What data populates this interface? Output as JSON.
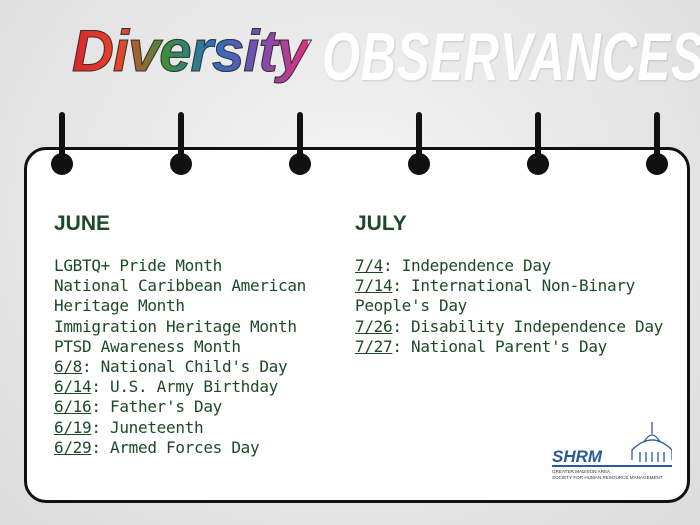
{
  "header": {
    "word1": "Diversity",
    "word2": "OBSERVANCES"
  },
  "columns": [
    {
      "heading": "JUNE",
      "items": [
        {
          "text": "LGBTQ+ Pride Month"
        },
        {
          "text": "National Caribbean American Heritage Month"
        },
        {
          "text": "Immigration Heritage Month"
        },
        {
          "text": "PTSD Awareness Month"
        },
        {
          "date": "6/8",
          "text": ": National Child's Day"
        },
        {
          "date": "6/14",
          "text": ": U.S. Army Birthday"
        },
        {
          "date": "6/16",
          "text": ": Father's Day"
        },
        {
          "date": "6/19",
          "text": ": Juneteenth"
        },
        {
          "date": "6/29",
          "text": ": Armed Forces Day"
        }
      ]
    },
    {
      "heading": "JULY",
      "items": [
        {
          "date": "7/4",
          "text": ": Independence Day"
        },
        {
          "date": "7/14",
          "text": ": International Non-Binary People's Day"
        },
        {
          "date": "7/26",
          "text": ": Disability Independence Day"
        },
        {
          "date": "7/27",
          "text": ": National Parent's Day"
        }
      ]
    }
  ],
  "logo": {
    "name": "SHRM",
    "line1": "GREATER MADISON AREA",
    "line2": "SOCIETY FOR HUMAN RESOURCE MANAGEMENT"
  }
}
